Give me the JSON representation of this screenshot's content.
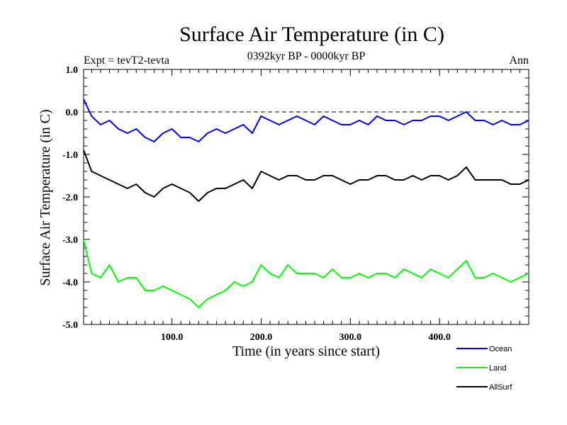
{
  "title": "Surface Air Temperature (in C)",
  "subtitle": "0392kyr BP - 0000kyr BP",
  "expt_label": "Expt = tevT2-tevta",
  "season": "Ann",
  "colors": {
    "Ocean": "#0000ff",
    "Land": "#00ff00",
    "AllSurf": "#000000"
  },
  "chart_data": {
    "type": "line",
    "title": "Surface Air Temperature (in C)",
    "xlabel": "Time (in years since start)",
    "ylabel": "Surface Air Temperature (in C)",
    "xlim": [
      1,
      500
    ],
    "ylim": [
      -5.0,
      1.0
    ],
    "x_ticks": [
      100,
      200,
      300,
      400
    ],
    "x_tick_labels": [
      "100.0",
      "200.0",
      "300.0",
      "400.0"
    ],
    "y_ticks": [
      -5,
      -4,
      -3,
      -2,
      -1,
      0,
      1
    ],
    "y_tick_labels": [
      "-5.0",
      "-4.0",
      "-3.0",
      "-2.0",
      "-1.0",
      "0.0",
      "1.0"
    ],
    "reference_line": 0.0,
    "legend_position": "bottom-right outside",
    "x": [
      1,
      10,
      20,
      30,
      40,
      50,
      60,
      70,
      80,
      90,
      100,
      110,
      120,
      130,
      140,
      150,
      160,
      170,
      180,
      190,
      200,
      210,
      220,
      230,
      240,
      250,
      260,
      270,
      280,
      290,
      300,
      310,
      320,
      330,
      340,
      350,
      360,
      370,
      380,
      390,
      400,
      410,
      420,
      430,
      440,
      450,
      460,
      470,
      480,
      490,
      500
    ],
    "series": [
      {
        "name": "Ocean",
        "color": "#0000ff",
        "values": [
          0.3,
          -0.1,
          -0.3,
          -0.2,
          -0.4,
          -0.5,
          -0.4,
          -0.6,
          -0.7,
          -0.5,
          -0.4,
          -0.6,
          -0.6,
          -0.7,
          -0.5,
          -0.4,
          -0.5,
          -0.4,
          -0.3,
          -0.5,
          -0.1,
          -0.2,
          -0.3,
          -0.2,
          -0.1,
          -0.2,
          -0.3,
          -0.1,
          -0.2,
          -0.3,
          -0.3,
          -0.2,
          -0.3,
          -0.1,
          -0.2,
          -0.2,
          -0.3,
          -0.2,
          -0.2,
          -0.1,
          -0.1,
          -0.2,
          -0.1,
          0.0,
          -0.2,
          -0.2,
          -0.3,
          -0.2,
          -0.3,
          -0.3,
          -0.2
        ]
      },
      {
        "name": "Land",
        "color": "#00ff00",
        "values": [
          -3.0,
          -3.8,
          -3.9,
          -3.6,
          -4.0,
          -3.9,
          -3.9,
          -4.2,
          -4.2,
          -4.1,
          -4.2,
          -4.3,
          -4.4,
          -4.6,
          -4.4,
          -4.3,
          -4.2,
          -4.0,
          -4.1,
          -4.0,
          -3.6,
          -3.8,
          -3.9,
          -3.6,
          -3.8,
          -3.8,
          -3.8,
          -3.9,
          -3.7,
          -3.9,
          -3.9,
          -3.8,
          -3.9,
          -3.8,
          -3.8,
          -3.9,
          -3.7,
          -3.8,
          -3.9,
          -3.7,
          -3.8,
          -3.9,
          -3.7,
          -3.5,
          -3.9,
          -3.9,
          -3.8,
          -3.9,
          -4.0,
          -3.9,
          -3.8
        ]
      },
      {
        "name": "AllSurf",
        "color": "#000000",
        "values": [
          -0.9,
          -1.4,
          -1.5,
          -1.6,
          -1.7,
          -1.8,
          -1.7,
          -1.9,
          -2.0,
          -1.8,
          -1.7,
          -1.8,
          -1.9,
          -2.1,
          -1.9,
          -1.8,
          -1.8,
          -1.7,
          -1.6,
          -1.8,
          -1.4,
          -1.5,
          -1.6,
          -1.5,
          -1.5,
          -1.6,
          -1.6,
          -1.5,
          -1.5,
          -1.6,
          -1.7,
          -1.6,
          -1.6,
          -1.5,
          -1.5,
          -1.6,
          -1.6,
          -1.5,
          -1.6,
          -1.5,
          -1.5,
          -1.6,
          -1.5,
          -1.3,
          -1.6,
          -1.6,
          -1.6,
          -1.6,
          -1.7,
          -1.7,
          -1.6
        ]
      }
    ]
  }
}
